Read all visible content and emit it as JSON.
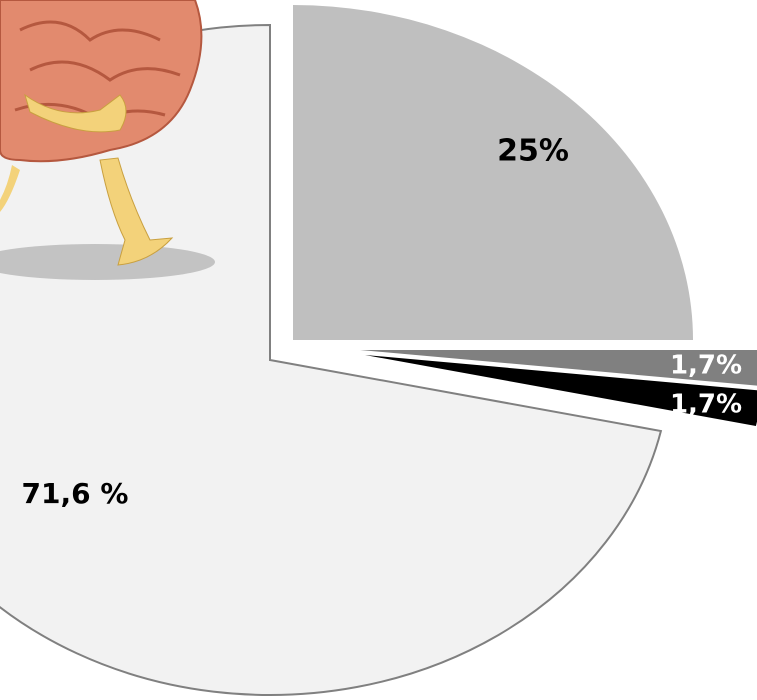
{
  "chart_data": {
    "type": "pie",
    "values": [
      25,
      1.7,
      1.7,
      71.6
    ],
    "value_labels": [
      "25%",
      "1,7%",
      "1,7%",
      "71,6 %"
    ],
    "colors": [
      "#bfbfbf",
      "#808080",
      "#000000",
      "#f2f2f2"
    ]
  }
}
